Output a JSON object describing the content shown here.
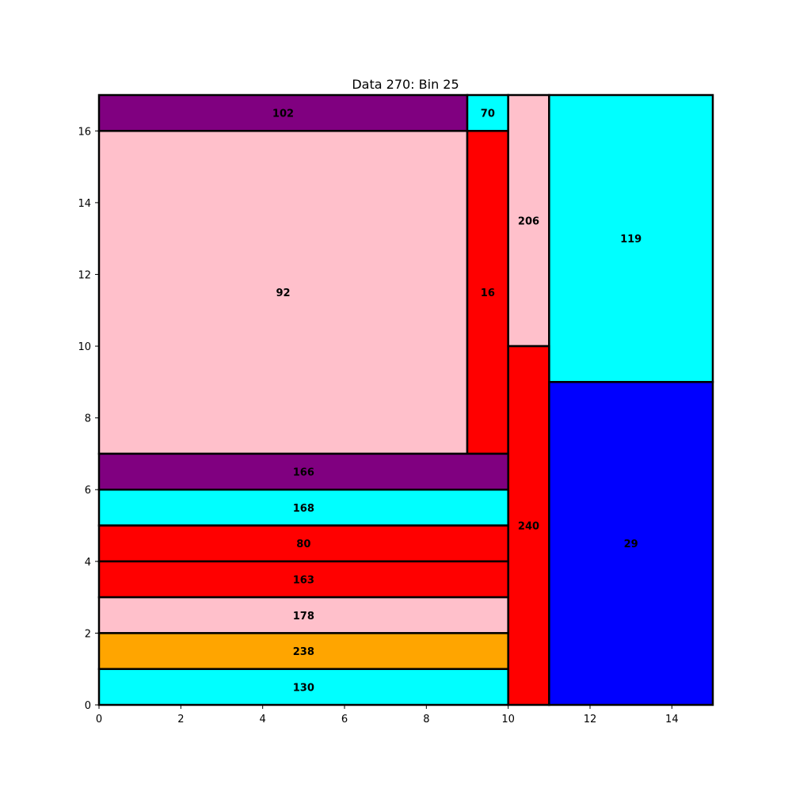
{
  "chart_data": {
    "type": "rectangle-packing",
    "title": "Data 270: Bin 25",
    "xlabel": "",
    "ylabel": "",
    "xlim": [
      0,
      15
    ],
    "ylim": [
      0,
      17
    ],
    "xticks": [
      "0",
      "2",
      "4",
      "6",
      "8",
      "10",
      "12",
      "14"
    ],
    "yticks": [
      "0",
      "2",
      "4",
      "6",
      "8",
      "10",
      "12",
      "14",
      "16"
    ],
    "grid": false,
    "rectangles": [
      {
        "label": "102",
        "x": 0,
        "y": 16,
        "w": 9,
        "h": 1,
        "color": "#800080"
      },
      {
        "label": "70",
        "x": 9,
        "y": 16,
        "w": 1,
        "h": 1,
        "color": "#00ffff"
      },
      {
        "label": "92",
        "x": 0,
        "y": 7,
        "w": 9,
        "h": 9,
        "color": "#ffc0cb"
      },
      {
        "label": "16",
        "x": 9,
        "y": 7,
        "w": 1,
        "h": 9,
        "color": "#ff0000"
      },
      {
        "label": "206",
        "x": 10,
        "y": 10,
        "w": 1,
        "h": 7,
        "color": "#ffc0cb"
      },
      {
        "label": "119",
        "x": 11,
        "y": 9,
        "w": 4,
        "h": 8,
        "color": "#00ffff"
      },
      {
        "label": "240",
        "x": 10,
        "y": 0,
        "w": 1,
        "h": 10,
        "color": "#ff0000"
      },
      {
        "label": "29",
        "x": 11,
        "y": 0,
        "w": 4,
        "h": 9,
        "color": "#0000ff"
      },
      {
        "label": "166",
        "x": 0,
        "y": 6,
        "w": 10,
        "h": 1,
        "color": "#800080"
      },
      {
        "label": "168",
        "x": 0,
        "y": 5,
        "w": 10,
        "h": 1,
        "color": "#00ffff"
      },
      {
        "label": "80",
        "x": 0,
        "y": 4,
        "w": 10,
        "h": 1,
        "color": "#ff0000"
      },
      {
        "label": "163",
        "x": 0,
        "y": 3,
        "w": 10,
        "h": 1,
        "color": "#ff0000"
      },
      {
        "label": "178",
        "x": 0,
        "y": 2,
        "w": 10,
        "h": 1,
        "color": "#ffc0cb"
      },
      {
        "label": "238",
        "x": 0,
        "y": 1,
        "w": 10,
        "h": 1,
        "color": "#ffa500"
      },
      {
        "label": "130",
        "x": 0,
        "y": 0,
        "w": 10,
        "h": 1,
        "color": "#00ffff"
      }
    ]
  }
}
